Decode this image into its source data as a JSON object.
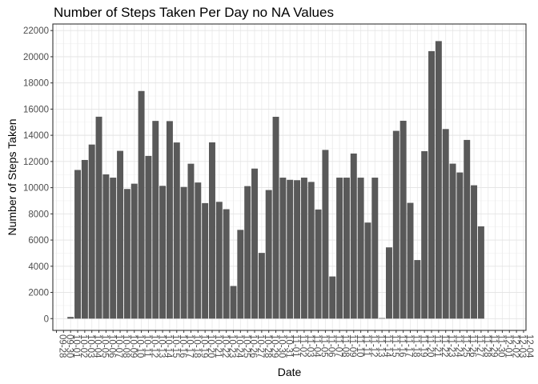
{
  "chart_data": {
    "type": "bar",
    "title": "Number of Steps Taken Per Day no NA Values",
    "xlabel": "Date",
    "ylabel": "Number of Steps Taken",
    "ylim": [
      -900,
      22500
    ],
    "yticks": [
      0,
      2000,
      4000,
      6000,
      8000,
      10000,
      12000,
      14000,
      16000,
      18000,
      20000,
      22000
    ],
    "grid": true,
    "bar_color": "#595959",
    "x_tick_labels": [
      "09-28",
      "09-30",
      "10-01",
      "10-02",
      "10-03",
      "10-04",
      "10-05",
      "10-06",
      "10-07",
      "10-08",
      "10-09",
      "10-10",
      "10-11",
      "10-12",
      "10-13",
      "10-14",
      "10-15",
      "10-16",
      "10-17",
      "10-18",
      "10-19",
      "10-20",
      "10-21",
      "10-22",
      "10-23",
      "10-24",
      "10-25",
      "10-26",
      "10-27",
      "10-28",
      "10-29",
      "10-30",
      "10-31",
      "11-01",
      "11-02",
      "11-03",
      "11-04",
      "11-05",
      "11-06",
      "11-07",
      "11-08",
      "11-09",
      "11-10",
      "11-11",
      "11-12",
      "11-13",
      "11-14",
      "11-15",
      "11-16",
      "11-17",
      "11-18",
      "11-19",
      "11-20",
      "11-21",
      "11-22",
      "11-23",
      "11-24",
      "11-25",
      "11-26",
      "11-27",
      "11-28",
      "11-29",
      "11-30",
      "12-01",
      "12-02",
      "12-03",
      "12-04"
    ],
    "categories": [
      "10-01",
      "10-02",
      "10-03",
      "10-04",
      "10-05",
      "10-06",
      "10-07",
      "10-08",
      "10-09",
      "10-10",
      "10-11",
      "10-12",
      "10-13",
      "10-14",
      "10-15",
      "10-16",
      "10-17",
      "10-18",
      "10-19",
      "10-20",
      "10-21",
      "10-22",
      "10-23",
      "10-24",
      "10-25",
      "10-26",
      "10-27",
      "10-28",
      "10-29",
      "10-30",
      "10-31",
      "11-01",
      "11-02",
      "11-03",
      "11-04",
      "11-05",
      "11-06",
      "11-07",
      "11-08",
      "11-09",
      "11-10",
      "11-11",
      "11-12",
      "11-13",
      "11-14",
      "11-15",
      "11-16",
      "11-17",
      "11-18",
      "11-19",
      "11-20",
      "11-21",
      "11-22",
      "11-23",
      "11-24",
      "11-25",
      "11-26",
      "11-27",
      "11-28",
      "11-29",
      "11-30"
    ],
    "values": [
      126,
      11352,
      12116,
      13294,
      15420,
      11015,
      10766,
      12811,
      9900,
      10304,
      17382,
      12426,
      15098,
      10139,
      15084,
      13452,
      10056,
      11829,
      10395,
      8821,
      13460,
      8918,
      8355,
      2492,
      6778,
      10119,
      11458,
      5018,
      9819,
      15414,
      10766,
      10600,
      10571,
      10766,
      10439,
      8334,
      12883,
      3219,
      10766,
      10766,
      12608,
      10765,
      7336,
      10766,
      41,
      5441,
      14339,
      15110,
      8841,
      4472,
      12787,
      20427,
      21194,
      14478,
      11834,
      11162,
      13646,
      10183,
      7047,
      0,
      0
    ]
  }
}
